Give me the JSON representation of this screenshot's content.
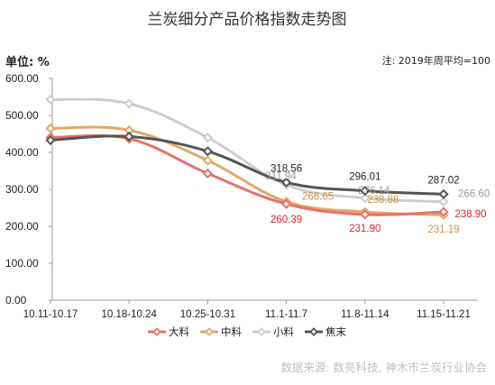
{
  "chart_data": {
    "type": "line",
    "title": "兰炭细分产品价格指数走势图",
    "ylabel": "单位:  %",
    "note": "注: 2019年周平均=100",
    "source": "数据来源: 数亮科技, 神木市兰炭行业协会",
    "categories": [
      "10.11-10.17",
      "10.18-10.24",
      "10.25-10.31",
      "11.1-11.7",
      "11.8-11.14",
      "11.15-11.21"
    ],
    "ylim": [
      0,
      600
    ],
    "yticks": [
      "0.00",
      "100.00",
      "200.00",
      "300.00",
      "400.00",
      "500.00",
      "600.00"
    ],
    "grid": false,
    "legend_position": "bottom",
    "series": [
      {
        "name": "大料",
        "color": "#e8706b",
        "values": [
          440,
          437,
          343,
          260.39,
          231.9,
          238.9
        ]
      },
      {
        "name": "中料",
        "color": "#e0aa66",
        "values": [
          465,
          460,
          378,
          266.65,
          238.88,
          231.19
        ]
      },
      {
        "name": "小料",
        "color": "#cfcfc8",
        "values": [
          543,
          532,
          440,
          311.94,
          276.14,
          266.6
        ]
      },
      {
        "name": "焦末",
        "color": "#555555",
        "values": [
          433,
          443,
          403,
          318.56,
          296.01,
          287.02
        ]
      }
    ],
    "data_labels": [
      {
        "series": "焦末",
        "text": "318.56",
        "color": "#222222"
      },
      {
        "series": "焦末",
        "text": "296.01",
        "color": "#222222"
      },
      {
        "series": "焦末",
        "text": "287.02",
        "color": "#222222"
      },
      {
        "series": "小料",
        "text": "311.94",
        "color": "#9a9a9a"
      },
      {
        "series": "小料",
        "text": "276.14",
        "color": "#9a9a9a"
      },
      {
        "series": "小料",
        "text": "266.60",
        "color": "#9a9a9a"
      },
      {
        "series": "中料",
        "text": "266.65",
        "color": "#c8954e"
      },
      {
        "series": "中料",
        "text": "238.88",
        "color": "#c8954e"
      },
      {
        "series": "中料",
        "text": "231.19",
        "color": "#c8954e"
      },
      {
        "series": "大料",
        "text": "260.39",
        "color": "#e0252a"
      },
      {
        "series": "大料",
        "text": "231.90",
        "color": "#e0252a"
      },
      {
        "series": "大料",
        "text": "238.90",
        "color": "#e0252a"
      }
    ]
  }
}
